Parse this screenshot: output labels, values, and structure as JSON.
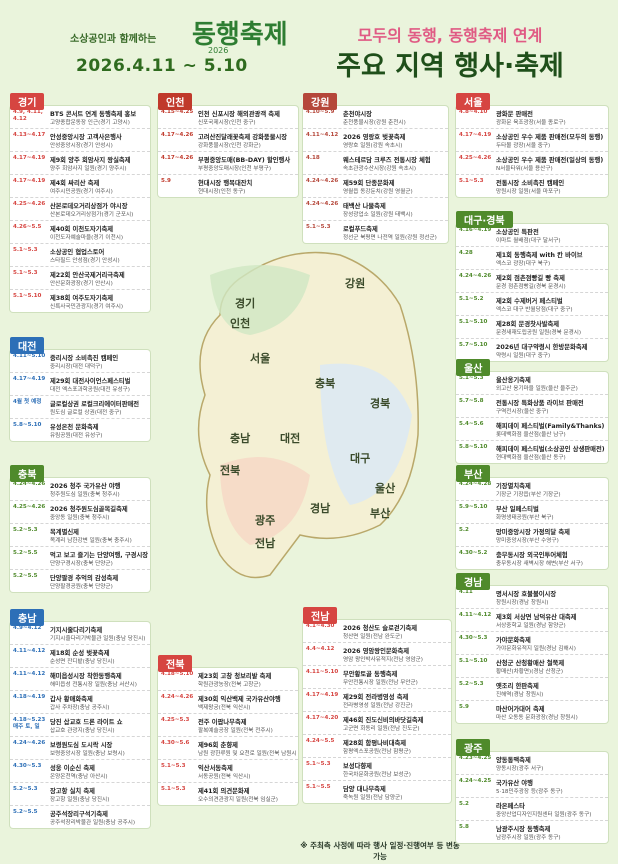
{
  "header": {
    "logo_tagline": "소상공인과 함께하는",
    "logo_name": "동행축제",
    "logo_year": "2026",
    "dates": "2026.4.11 ~ 5.10",
    "subtitle": "모두의 동행, 동행축제 연계",
    "title": "주요 지역 행사·축제"
  },
  "regions": [
    {
      "name": "경기",
      "color": "#d64541",
      "events": [
        [
          "4.9, 4.11, 4.12",
          "BTS 콘서트 연계 동행축제 홍보",
          "고양종합운동장 인근(경기 고양시)"
        ],
        [
          "4.13~4.17",
          "안성중앙시장 고객사은행사",
          "안성중앙시장(경기 안성시)"
        ],
        [
          "4.17~4.19",
          "제9회 양주 회암사지 왕실축제",
          "양주 회암사지 일원(경기 양주시)"
        ],
        [
          "4.17~4.19",
          "제4회 싸리산 축제",
          "여주시민공원(경기 여주시)"
        ],
        [
          "4.25~4.26",
          "산본로데오거리상점가 야시장",
          "산본로데오거리상점가(경기 군포시)"
        ],
        [
          "4.26~5.5",
          "제40회 이천도자기축제",
          "이천도자예술마을(경기 이천시)"
        ],
        [
          "5.1~5.3",
          "소상공인 협업스토어",
          "스타필드 안성점(경기 안성시)"
        ],
        [
          "5.1~5.3",
          "제22회 안산국제거리극축제",
          "안산문화광장(경기 안산시)"
        ],
        [
          "5.1~5.10",
          "제38회 여주도자기축제",
          "신륵사국민관광지(경기 여주시)"
        ]
      ]
    },
    {
      "name": "대전",
      "color": "#2d6fb7",
      "events": [
        [
          "4.11~5.10",
          "중리시장 소비촉진 캠페인",
          "중리시장(대전 대덕구)"
        ],
        [
          "4.17~4.19",
          "제29회 대전사이언스페스티벌",
          "대전 엑스포과학공원(대전 유성구)"
        ],
        [
          "4월 첫 예정",
          "글로컬상권 로컬크리에이터판매전",
          "원도심 글로컬 상권(대전 중구)"
        ],
        [
          "5.8~5.10",
          "유성온천 문화축제",
          "유림공원(대전 유성구)"
        ]
      ]
    },
    {
      "name": "충북",
      "color": "#4f8a2b",
      "events": [
        [
          "4.24~4.26",
          "2026 청주 국가유산 야행",
          "청주원도심 일원(충북 청주시)"
        ],
        [
          "4.25~4.26",
          "2026 청주원도심골목길축제",
          "중앙동 일원(충북 청주시)"
        ],
        [
          "5.2~5.3",
          "목계별신제",
          "목계리 남한강변 일원(충북 충주시)"
        ],
        [
          "5.2~5.5",
          "먹고 보고 즐기는 단양여행, 구경시장",
          "단양구경시장(충북 단양군)"
        ],
        [
          "5.2~5.5",
          "단양팔경 추억의 감성축제",
          "단양팔경공원(충북 단양군)"
        ]
      ]
    },
    {
      "name": "충남",
      "color": "#2d6fb7",
      "events": [
        [
          "4.9~4.12",
          "기지시줄다리기축제",
          "기지시줄다리기박물관 일원(충남 당진시)"
        ],
        [
          "4.11~4.12",
          "제18회 순성 벚꽃축제",
          "순성면 잔디밭(충남 당진시)"
        ],
        [
          "4.11~4.12",
          "해미읍성시장 착한동행축제",
          "해미읍성 전통시장 일원(충남 서산시)"
        ],
        [
          "4.18~4.19",
          "갑사 황매화축제",
          "갑사 주차장(충남 공주시)"
        ],
        [
          "4.18~5.23 매주 토, 일",
          "당진 삽교호 드론 라이트 쇼",
          "삽교호 관광지(충남 당진시)"
        ],
        [
          "4.24~4.26",
          "보령원도심 도시락 시장",
          "보령중앙시장 일원(충남 보령시)"
        ],
        [
          "4.30~5.3",
          "성웅 이순신 축제",
          "온양온천역(충남 아산시)"
        ],
        [
          "5.2~5.3",
          "장고항 실치 축제",
          "장고항 일원(충남 당진시)"
        ],
        [
          "5.2~5.5",
          "공주석장리구석기축제",
          "공주석장리박물관 일원(충남 공주시)"
        ]
      ]
    },
    {
      "name": "인천",
      "color": "#c0392b",
      "events": [
        [
          "4.15~4.25",
          "인천 신포시장 해외관광객 축제",
          "신포국제시장(인천 중구)"
        ],
        [
          "4.17~4.26",
          "고려산진달래꽃축제 강화풍물시장",
          "강화풍물시장(인천 강화군)"
        ],
        [
          "4.17~4.26",
          "부평중앙도매(BB-DAY) 할인행사",
          "부평중앙도매시장(인천 부평구)"
        ],
        [
          "5.9",
          "현대시장 행복대잔치",
          "현대시장(인천 동구)"
        ]
      ]
    },
    {
      "name": "강원",
      "color": "#b5473a",
      "events": [
        [
          "4.10~5.9",
          "춘천야시장",
          "춘천풍물시장(강원 춘천시)"
        ],
        [
          "4.11~4.12",
          "2026 영랑호 벚꽃축제",
          "영랑호 일원(강원 속초시)"
        ],
        [
          "4.18",
          "웨스테르담 크루즈 전통시장 체험",
          "속초관광수산시장(강원 속초시)"
        ],
        [
          "4.24~4.26",
          "제59회 단종문화제",
          "영월읍 동강둔치(강원 영월군)"
        ],
        [
          "4.24~4.26",
          "태백산 나물축제",
          "장성광업소 일원(강원 태백시)"
        ],
        [
          "5.1~5.3",
          "로컬푸드축제",
          "정선군 북평면 나전역 일원(강원 정선군)"
        ]
      ]
    },
    {
      "name": "서울",
      "color": "#d64541",
      "events": [
        [
          "4.8~4.10",
          "광화문 판매전",
          "광화문 육조광장(서울 종로구)"
        ],
        [
          "4.17~4.19",
          "소상공인 우수 제품 판매전(모두의 동행)",
          "두타몰 광장(서울 중구)"
        ],
        [
          "4.25~4.26",
          "소상공인 우수 제품 판매전(일상의 동행)",
          "N서울타워(서울 용산구)"
        ],
        [
          "5.1~5.3",
          "전통시장 소비촉진 캠페인",
          "망원시장 일원(서울 마포구)"
        ]
      ]
    },
    {
      "name": "대구·경북",
      "color": "#4f8a2b",
      "events": [
        [
          "4.16~4.19",
          "소상공인 특판전",
          "이마트 월배점(대구 달서구)"
        ],
        [
          "4.28",
          "제1회 동행축제 with 칸 바이브",
          "엑스코 광장(대구 북구)"
        ],
        [
          "4.24~4.26",
          "제2회 점촌점빵길 빵 축제",
          "문경 점촌점빵길(경북 문경시)"
        ],
        [
          "5.1~5.2",
          "제2회 수제버거 페스티벌",
          "엑스코 대구 반월당점(대구 중구)"
        ],
        [
          "5.1~5.10",
          "제28회 문경찻사발축제",
          "문경새재도립공원 일원(경북 문경시)"
        ],
        [
          "5.7~5.10",
          "2026년 대구약령시 한방문화축제",
          "약령시 일원(대구 중구)"
        ]
      ]
    },
    {
      "name": "울산",
      "color": "#4f8a2b",
      "events": [
        [
          "5.1~5.3",
          "울산옹기축제",
          "외고산 옹기마을 일원(울산 울주군)"
        ],
        [
          "5.7~5.8",
          "전통시장 특화상품 라이브 판매전",
          "구역전시장(울산 중구)"
        ],
        [
          "5.4~5.6",
          "해피데이 페스티벌(Family&Thanks)",
          "롯데백화점 울산점(울산 남구)"
        ],
        [
          "5.8~5.10",
          "해피데이 페스티벌(소상공인 상생판매전)",
          "현대백화점 울산점(울산 동구)"
        ]
      ]
    },
    {
      "name": "부산",
      "color": "#4f8a2b",
      "events": [
        [
          "4.24~4.28",
          "기장멸치축제",
          "기장군 기장읍(부산 기장군)"
        ],
        [
          "5.9~5.10",
          "부산 일페스티벌",
          "화명생태공원(부산 북구)"
        ],
        [
          "5.2",
          "망미중앙시장 가정의달 축제",
          "망미중앙시장(부산 수영구)"
        ],
        [
          "4.30~5.2",
          "충무동시장 외국인투어체험",
          "충무동시장 새벽시장 해변(부산 서구)"
        ]
      ]
    },
    {
      "name": "경남",
      "color": "#4f8a2b",
      "events": [
        [
          "4.11",
          "명서시장 호불볼이시장",
          "창원시장(경남 창원시)"
        ],
        [
          "4.11~4.12",
          "제3회 서상면 남덕유산 대축제",
          "서상중학교 일원(경남 함양군)"
        ],
        [
          "4.30~5.3",
          "가야문화축제",
          "가야문화유적지 일원(경남 김해시)"
        ],
        [
          "5.1~5.10",
          "산청군 산청황매산 철쭉제",
          "황매산(차황면)(경남 산청군)"
        ],
        [
          "5.2~5.3",
          "옛조리 한판축제",
          "진해역(경남 창원시)"
        ],
        [
          "5.9",
          "마산어가대어 축제",
          "마산 오동동 문화광장(경남 창원시)"
        ]
      ]
    },
    {
      "name": "광주",
      "color": "#4f8a2b",
      "events": [
        [
          "4.23~4.25",
          "양동통맥축제",
          "양동시장(광주 서구)"
        ],
        [
          "4.24~4.25",
          "국가유산 야행",
          "5·18민주광장 등(광주 동구)"
        ],
        [
          "5.2",
          "라온페스타",
          "중앙산업디자인지원센터 일원(광주 동구)"
        ],
        [
          "5.8",
          "남광주시장 동행축제",
          "남광주시장 일원(광주 동구)"
        ]
      ]
    },
    {
      "name": "전북",
      "color": "#d64541",
      "events": [
        [
          "4.18~5.10",
          "제23회 고창 청보리밭 축제",
          "학원관광농장(전북 고창군)"
        ],
        [
          "4.24~4.26",
          "제30회 익산백제 국가유산야행",
          "백제왕궁(전북 익산시)"
        ],
        [
          "4.25~5.3",
          "전주 이팝나무축제",
          "팔복예술공장 일원(전북 전주시)"
        ],
        [
          "4.30~5.6",
          "제96회 춘향제",
          "남원 광한루원 및 요천로 일원(전북 남원시)"
        ],
        [
          "5.1~5.3",
          "익산서동축제",
          "서동공원(전북 익산시)"
        ],
        [
          "5.1~5.3",
          "제41회 의견문화제",
          "오수의견관광지 일원(전북 임실군)"
        ]
      ]
    },
    {
      "name": "전남",
      "color": "#d64541",
      "events": [
        [
          "4.1~4.30",
          "2026 청산도 슬로걷기축제",
          "청산면 일원(전남 완도군)"
        ],
        [
          "4.4~4.12",
          "2026 영암왕인문화축제",
          "영암 왕인박사유적지(전남 영암군)"
        ],
        [
          "4.11~5.10",
          "무안황토골 동행축제",
          "무안전통시장 일원(전남 무안군)"
        ],
        [
          "4.17~4.19",
          "제29회 전라병영성 축제",
          "전라병영성 일원(전남 강진군)"
        ],
        [
          "4.17~4.20",
          "제46회 진도신비의바닷길축제",
          "고군면 회동리 일원(전남 진도군)"
        ],
        [
          "4.24~5.5",
          "제28회 함평나비대축제",
          "함평엑스포공원(전남 함평군)"
        ],
        [
          "5.1~5.3",
          "보성다향제",
          "한국차문화공원(전남 보성군)"
        ],
        [
          "5.1~5.5",
          "담양 대나무축제",
          "죽녹원 일원(전남 담양군)"
        ]
      ]
    }
  ],
  "map": {
    "labels": [
      "경기",
      "강원",
      "인천",
      "서울",
      "충북",
      "경북",
      "충남",
      "대전",
      "대구",
      "전북",
      "울산",
      "경남",
      "부산",
      "광주",
      "전남"
    ]
  },
  "footer": "※ 주최측 사정에 따라 행사 일정·진행여부 등 변동 가능"
}
